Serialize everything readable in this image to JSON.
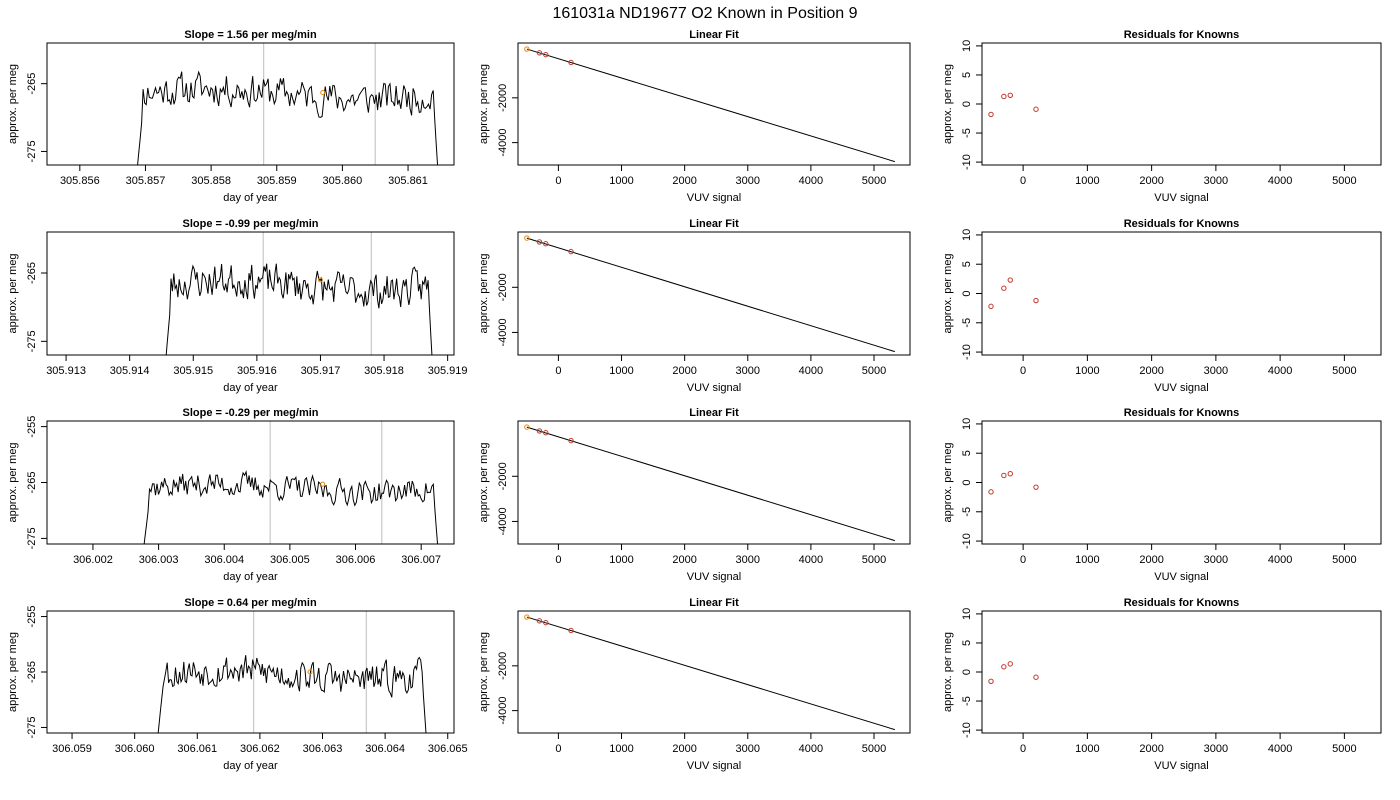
{
  "figure": {
    "title": "161031a     ND19677   O2 Known in Position  9"
  },
  "chart_data": [
    {
      "type": "line",
      "row": 0,
      "col": 0,
      "title": "Slope =  1.56  per meg/min",
      "xlabel": "day of year",
      "ylabel": "approx. per meg",
      "xlim": [
        305.8555,
        305.8617
      ],
      "ylim": [
        -277,
        -259
      ],
      "xticks": [
        305.856,
        305.857,
        305.858,
        305.859,
        305.86,
        305.861
      ],
      "xtick_labels": [
        "305.856",
        "305.857",
        "305.858",
        "305.859",
        "305.860",
        "305.861"
      ],
      "yticks": [
        -275,
        -265
      ],
      "ytick_labels": [
        "-275",
        "-265"
      ],
      "vlines": [
        305.8588,
        305.8605
      ],
      "line": {
        "start": 305.8568,
        "end": 305.8615,
        "level": -266.5,
        "amp": 2.2,
        "seed": 11
      },
      "marker": {
        "x": 305.8597,
        "y": -266.3
      }
    },
    {
      "type": "line",
      "row": 0,
      "col": 1,
      "title": "Linear Fit",
      "xlabel": "VUV signal",
      "ylabel": "approx. per meg",
      "xlim": [
        -640,
        5570
      ],
      "ylim": [
        -5000,
        450
      ],
      "xticks": [
        0,
        1000,
        2000,
        3000,
        4000,
        5000
      ],
      "xtick_labels": [
        "0",
        "1000",
        "2000",
        "3000",
        "4000",
        "5000"
      ],
      "yticks": [
        -4000,
        -2000
      ],
      "ytick_labels": [
        "-4000",
        "-2000"
      ],
      "fit_line": {
        "x": [
          -500,
          5330
        ],
        "y": [
          180,
          -4850
        ]
      },
      "points": {
        "x": [
          -500,
          -300,
          -200,
          200
        ],
        "y": [
          180,
          10,
          -70,
          -420
        ]
      },
      "highlight_index": 0
    },
    {
      "type": "scatter",
      "row": 0,
      "col": 2,
      "title": "Residuals for Knowns",
      "xlabel": "VUV signal",
      "ylabel": "approx. per meg",
      "xlim": [
        -640,
        5570
      ],
      "ylim": [
        -10.5,
        10.5
      ],
      "xticks": [
        0,
        1000,
        2000,
        3000,
        4000,
        5000
      ],
      "xtick_labels": [
        "0",
        "1000",
        "2000",
        "3000",
        "4000",
        "5000"
      ],
      "yticks": [
        -10,
        -5,
        0,
        5,
        10
      ],
      "ytick_labels": [
        "-10",
        "-5",
        "0",
        "5",
        "10"
      ],
      "points": {
        "x": [
          -500,
          -300,
          -200,
          200
        ],
        "y": [
          -1.8,
          1.3,
          1.5,
          -0.9
        ]
      }
    },
    {
      "type": "line",
      "row": 1,
      "col": 0,
      "title": "Slope =  -0.99  per meg/min",
      "xlabel": "day of year",
      "ylabel": "approx. per meg",
      "xlim": [
        305.9127,
        305.9191
      ],
      "ylim": [
        -277,
        -259
      ],
      "xticks": [
        305.913,
        305.914,
        305.915,
        305.916,
        305.917,
        305.918,
        305.919
      ],
      "xtick_labels": [
        "305.913",
        "305.914",
        "305.915",
        "305.916",
        "305.917",
        "305.918",
        "305.919"
      ],
      "yticks": [
        -275,
        -265
      ],
      "ytick_labels": [
        "-275",
        "-265"
      ],
      "vlines": [
        305.9161,
        305.9178
      ],
      "line": {
        "start": 305.9145,
        "end": 305.9188,
        "level": -266.8,
        "amp": 2.3,
        "seed": 23
      },
      "marker": {
        "x": 305.917,
        "y": -266.0
      }
    },
    {
      "type": "line",
      "row": 1,
      "col": 1,
      "title": "Linear Fit",
      "xlabel": "VUV signal",
      "ylabel": "approx. per meg",
      "xlim": [
        -640,
        5570
      ],
      "ylim": [
        -5000,
        450
      ],
      "xticks": [
        0,
        1000,
        2000,
        3000,
        4000,
        5000
      ],
      "xtick_labels": [
        "0",
        "1000",
        "2000",
        "3000",
        "4000",
        "5000"
      ],
      "yticks": [
        -4000,
        -2000
      ],
      "ytick_labels": [
        "-4000",
        "-2000"
      ],
      "fit_line": {
        "x": [
          -500,
          5330
        ],
        "y": [
          180,
          -4850
        ]
      },
      "points": {
        "x": [
          -500,
          -300,
          -200,
          200
        ],
        "y": [
          180,
          10,
          -70,
          -420
        ]
      },
      "highlight_index": 0
    },
    {
      "type": "scatter",
      "row": 1,
      "col": 2,
      "title": "Residuals for Knowns",
      "xlabel": "VUV signal",
      "ylabel": "approx. per meg",
      "xlim": [
        -640,
        5570
      ],
      "ylim": [
        -10.5,
        10.5
      ],
      "xticks": [
        0,
        1000,
        2000,
        3000,
        4000,
        5000
      ],
      "xtick_labels": [
        "0",
        "1000",
        "2000",
        "3000",
        "4000",
        "5000"
      ],
      "yticks": [
        -10,
        -5,
        0,
        5,
        10
      ],
      "ytick_labels": [
        "-10",
        "-5",
        "0",
        "5",
        "10"
      ],
      "points": {
        "x": [
          -500,
          -300,
          -200,
          200
        ],
        "y": [
          -2.2,
          0.9,
          2.3,
          -1.2
        ]
      }
    },
    {
      "type": "line",
      "row": 2,
      "col": 0,
      "title": "Slope =  -0.29  per meg/min",
      "xlabel": "day of year",
      "ylabel": "approx. per meg",
      "xlim": [
        306.0013,
        306.0075
      ],
      "ylim": [
        -276,
        -254
      ],
      "xticks": [
        306.002,
        306.003,
        306.004,
        306.005,
        306.006,
        306.007
      ],
      "xtick_labels": [
        "306.002",
        "306.003",
        "306.004",
        "306.005",
        "306.006",
        "306.007"
      ],
      "yticks": [
        -275,
        -265,
        -255
      ],
      "ytick_labels": [
        "-275",
        "-265",
        "-255"
      ],
      "vlines": [
        306.0047,
        306.0064
      ],
      "line": {
        "start": 306.0027,
        "end": 306.0073,
        "level": -266.0,
        "amp": 2.0,
        "seed": 37
      },
      "marker": {
        "x": 306.0055,
        "y": -265.3
      }
    },
    {
      "type": "line",
      "row": 2,
      "col": 1,
      "title": "Linear Fit",
      "xlabel": "VUV signal",
      "ylabel": "approx. per meg",
      "xlim": [
        -640,
        5570
      ],
      "ylim": [
        -5000,
        450
      ],
      "xticks": [
        0,
        1000,
        2000,
        3000,
        4000,
        5000
      ],
      "xtick_labels": [
        "0",
        "1000",
        "2000",
        "3000",
        "4000",
        "5000"
      ],
      "yticks": [
        -4000,
        -2000
      ],
      "ytick_labels": [
        "-4000",
        "-2000"
      ],
      "fit_line": {
        "x": [
          -500,
          5330
        ],
        "y": [
          180,
          -4850
        ]
      },
      "points": {
        "x": [
          -500,
          -300,
          -200,
          200
        ],
        "y": [
          180,
          10,
          -70,
          -420
        ]
      },
      "highlight_index": 0
    },
    {
      "type": "scatter",
      "row": 2,
      "col": 2,
      "title": "Residuals for Knowns",
      "xlabel": "VUV signal",
      "ylabel": "approx. per meg",
      "xlim": [
        -640,
        5570
      ],
      "ylim": [
        -10.5,
        10.5
      ],
      "xticks": [
        0,
        1000,
        2000,
        3000,
        4000,
        5000
      ],
      "xtick_labels": [
        "0",
        "1000",
        "2000",
        "3000",
        "4000",
        "5000"
      ],
      "yticks": [
        -10,
        -5,
        0,
        5,
        10
      ],
      "ytick_labels": [
        "-10",
        "-5",
        "0",
        "5",
        "10"
      ],
      "points": {
        "x": [
          -500,
          -300,
          -200,
          200
        ],
        "y": [
          -1.6,
          1.2,
          1.5,
          -0.8
        ]
      }
    },
    {
      "type": "line",
      "row": 3,
      "col": 0,
      "title": "Slope =  0.64  per meg/min",
      "xlabel": "day of year",
      "ylabel": "approx. per meg",
      "xlim": [
        306.0586,
        306.0651
      ],
      "ylim": [
        -276,
        -254
      ],
      "xticks": [
        306.059,
        306.06,
        306.061,
        306.062,
        306.063,
        306.064,
        306.065
      ],
      "xtick_labels": [
        "306.059",
        "306.060",
        "306.061",
        "306.062",
        "306.063",
        "306.064",
        "306.065"
      ],
      "yticks": [
        -275,
        -265,
        -255
      ],
      "ytick_labels": [
        "-275",
        "-265",
        "-255"
      ],
      "vlines": [
        306.0619,
        306.0637
      ],
      "line": {
        "start": 306.0603,
        "end": 306.0647,
        "level": -265.5,
        "amp": 2.6,
        "seed": 53
      },
      "marker": {
        "x": 306.0628,
        "y": -265.0
      }
    },
    {
      "type": "line",
      "row": 3,
      "col": 1,
      "title": "Linear Fit",
      "xlabel": "VUV signal",
      "ylabel": "approx. per meg",
      "xlim": [
        -640,
        5570
      ],
      "ylim": [
        -5000,
        450
      ],
      "xticks": [
        0,
        1000,
        2000,
        3000,
        4000,
        5000
      ],
      "xtick_labels": [
        "0",
        "1000",
        "2000",
        "3000",
        "4000",
        "5000"
      ],
      "yticks": [
        -4000,
        -2000
      ],
      "ytick_labels": [
        "-4000",
        "-2000"
      ],
      "fit_line": {
        "x": [
          -500,
          5330
        ],
        "y": [
          180,
          -4850
        ]
      },
      "points": {
        "x": [
          -500,
          -300,
          -200,
          200
        ],
        "y": [
          180,
          10,
          -70,
          -420
        ]
      },
      "highlight_index": 0
    },
    {
      "type": "scatter",
      "row": 3,
      "col": 2,
      "title": "Residuals for Knowns",
      "xlabel": "VUV signal",
      "ylabel": "approx. per meg",
      "xlim": [
        -640,
        5570
      ],
      "ylim": [
        -10.5,
        10.5
      ],
      "xticks": [
        0,
        1000,
        2000,
        3000,
        4000,
        5000
      ],
      "xtick_labels": [
        "0",
        "1000",
        "2000",
        "3000",
        "4000",
        "5000"
      ],
      "yticks": [
        -10,
        -5,
        0,
        5,
        10
      ],
      "ytick_labels": [
        "-10",
        "-5",
        "0",
        "5",
        "10"
      ],
      "points": {
        "x": [
          -500,
          -300,
          -200,
          200
        ],
        "y": [
          -1.6,
          0.9,
          1.4,
          -0.9
        ]
      }
    }
  ],
  "colors": {
    "line": "#000000",
    "vline": "#c8c8c8",
    "point": "#c0392b",
    "highlight": "#e8890c",
    "frame": "#000000"
  }
}
